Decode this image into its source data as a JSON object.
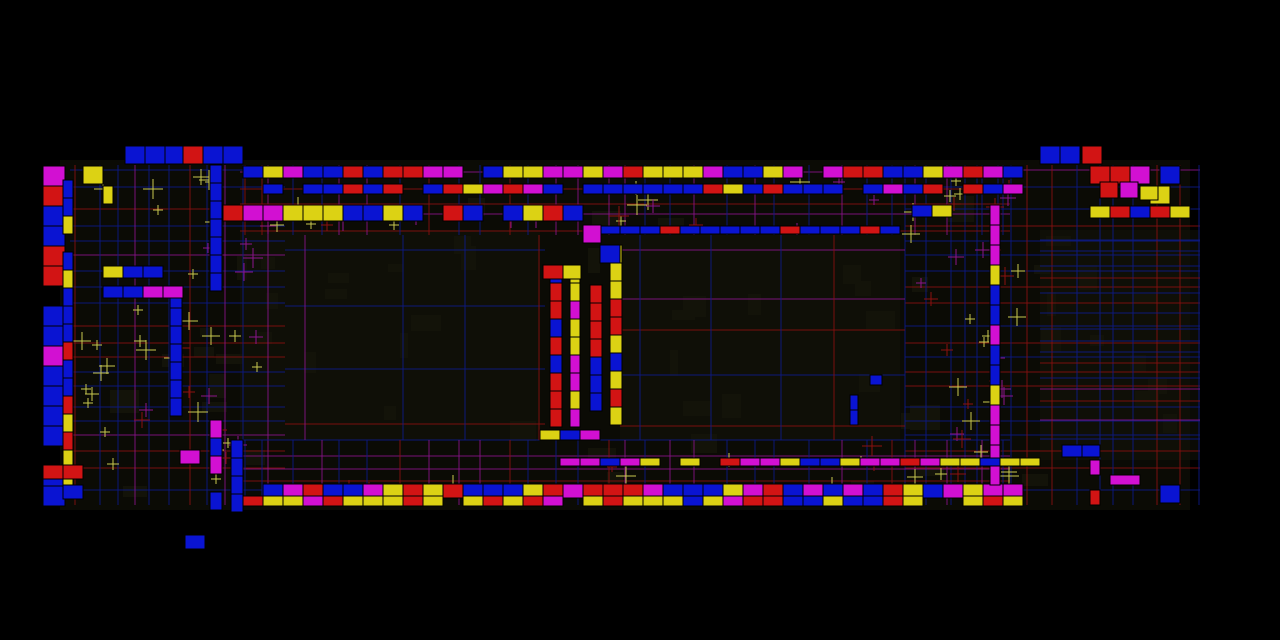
{
  "palette": {
    "background": "#000000",
    "blue": "#0a14d2",
    "magenta": "#d210d2",
    "yellow": "#dcd214",
    "red": "#d21414",
    "dark_fill": "#14140a",
    "grid_blue": "#0c1a8c",
    "grid_magenta": "#8c148c",
    "grid_red": "#8c1010",
    "marker_yellow": "#c8c850"
  }
}
